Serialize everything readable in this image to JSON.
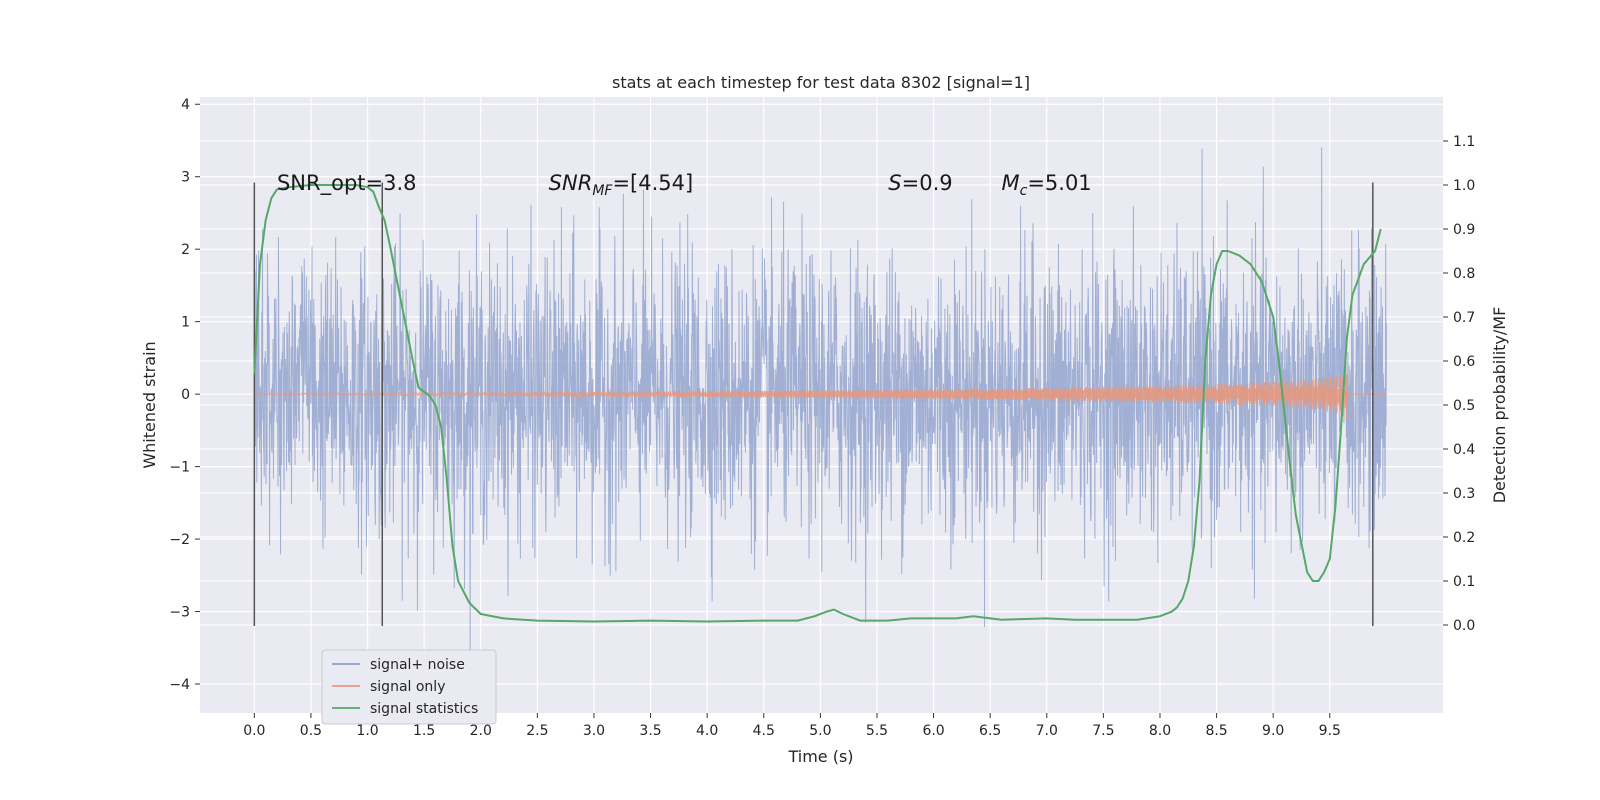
{
  "chart_data": {
    "type": "line",
    "title": "stats at each timestep for test data 8302 [signal=1]",
    "xlabel": "Time (s)",
    "ylabel": "Whitened strain",
    "y2label": "Detection probability/MF",
    "xlim": [
      -0.48,
      10.5
    ],
    "ylim": [
      -4.4,
      4.1
    ],
    "y2lim": [
      -0.2,
      1.2
    ],
    "xticks": [
      0.0,
      0.5,
      1.0,
      1.5,
      2.0,
      2.5,
      3.0,
      3.5,
      4.0,
      4.5,
      5.0,
      5.5,
      6.0,
      6.5,
      7.0,
      7.5,
      8.0,
      8.5,
      9.0,
      9.5
    ],
    "xtick_labels": [
      "0.0",
      "0.5",
      "1.0",
      "1.5",
      "2.0",
      "2.5",
      "3.0",
      "3.5",
      "4.0",
      "4.5",
      "5.0",
      "5.5",
      "6.0",
      "6.5",
      "7.0",
      "7.5",
      "8.0",
      "8.5",
      "9.0",
      "9.5"
    ],
    "yticks": [
      -4,
      -3,
      -2,
      -1,
      0,
      1,
      2,
      3,
      4
    ],
    "ytick_labels": [
      "−4",
      "−3",
      "−2",
      "−1",
      "0",
      "1",
      "2",
      "3",
      "4"
    ],
    "y2ticks": [
      0.0,
      0.1,
      0.2,
      0.3,
      0.4,
      0.5,
      0.6,
      0.7,
      0.8,
      0.9,
      1.0,
      1.1
    ],
    "y2tick_labels": [
      "0.0",
      "0.1",
      "0.2",
      "0.3",
      "0.4",
      "0.5",
      "0.6",
      "0.7",
      "0.8",
      "0.9",
      "1.0",
      "1.1"
    ],
    "grid": true,
    "legend": "lower-left",
    "annotations": [
      {
        "id": "snr-opt",
        "x": 0.2,
        "label_main": "SNR_opt=3.8",
        "label_sub": "",
        "label_rest": "",
        "italic": false
      },
      {
        "id": "snr-mf",
        "x": 2.6,
        "label_main": "SNR",
        "label_sub": "MF",
        "label_rest": "=[4.54]",
        "italic": true
      },
      {
        "id": "s-stat",
        "x": 5.6,
        "label_main": "S",
        "label_sub": "",
        "label_rest": "=0.9",
        "italic": true
      },
      {
        "id": "mc",
        "x": 6.6,
        "label_main": "M",
        "label_sub": "c",
        "label_rest": "=5.01",
        "italic": true
      }
    ],
    "annotation_y": 2.9,
    "vertical_markers": [
      0.0,
      1.13,
      9.88
    ],
    "vertical_marker_range": [
      -3.2,
      2.92
    ],
    "series": [
      {
        "name": "signal+ noise",
        "color": "#8da0cb",
        "x_range": [
          0.0,
          10.0
        ],
        "noise_sigma": 0.95,
        "noise_min": -4.0,
        "noise_max": 3.8
      },
      {
        "name": "signal only",
        "color": "#e5987e",
        "x": [
          0.0,
          2.0,
          4.0,
          5.5,
          7.0,
          8.0,
          8.5,
          9.0,
          9.3,
          9.6,
          9.65,
          9.66
        ],
        "amplitude": [
          0.01,
          0.02,
          0.04,
          0.06,
          0.09,
          0.12,
          0.14,
          0.17,
          0.2,
          0.27,
          0.35,
          0.0
        ]
      },
      {
        "name": "signal statistics",
        "color": "#55a868",
        "x": [
          0.0,
          0.05,
          0.1,
          0.15,
          0.2,
          0.3,
          0.5,
          0.7,
          0.9,
          1.0,
          1.05,
          1.1,
          1.15,
          1.2,
          1.3,
          1.4,
          1.45,
          1.5,
          1.55,
          1.6,
          1.65,
          1.7,
          1.75,
          1.8,
          1.9,
          2.0,
          2.2,
          2.5,
          3.0,
          3.5,
          4.0,
          4.5,
          4.8,
          4.95,
          5.05,
          5.12,
          5.2,
          5.35,
          5.6,
          5.8,
          6.0,
          6.2,
          6.35,
          6.6,
          7.0,
          7.25,
          7.5,
          7.8,
          8.0,
          8.1,
          8.15,
          8.2,
          8.25,
          8.3,
          8.35,
          8.4,
          8.45,
          8.5,
          8.55,
          8.6,
          8.7,
          8.8,
          8.9,
          9.0,
          9.05,
          9.1,
          9.15,
          9.2,
          9.3,
          9.35,
          9.4,
          9.45,
          9.5,
          9.55,
          9.6,
          9.65,
          9.7,
          9.8,
          9.9,
          9.95
        ],
        "y": [
          0.57,
          0.82,
          0.92,
          0.97,
          0.99,
          0.995,
          1.0,
          1.0,
          1.0,
          0.995,
          0.985,
          0.95,
          0.92,
          0.86,
          0.73,
          0.6,
          0.54,
          0.53,
          0.52,
          0.5,
          0.45,
          0.33,
          0.18,
          0.1,
          0.05,
          0.025,
          0.015,
          0.01,
          0.008,
          0.01,
          0.008,
          0.01,
          0.01,
          0.02,
          0.03,
          0.035,
          0.025,
          0.01,
          0.01,
          0.015,
          0.015,
          0.015,
          0.02,
          0.012,
          0.015,
          0.012,
          0.012,
          0.012,
          0.02,
          0.03,
          0.04,
          0.06,
          0.1,
          0.18,
          0.33,
          0.6,
          0.75,
          0.82,
          0.85,
          0.85,
          0.84,
          0.82,
          0.78,
          0.7,
          0.6,
          0.48,
          0.36,
          0.25,
          0.12,
          0.1,
          0.1,
          0.12,
          0.15,
          0.27,
          0.45,
          0.65,
          0.75,
          0.82,
          0.85,
          0.9
        ]
      }
    ]
  }
}
